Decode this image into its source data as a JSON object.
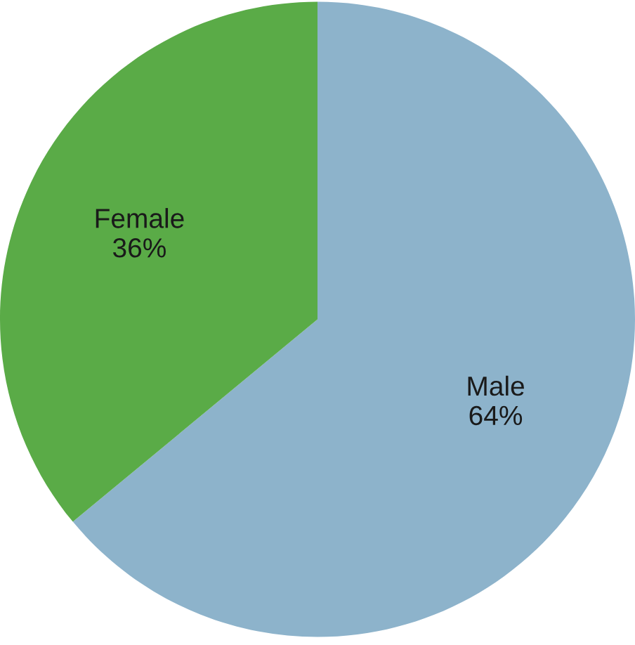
{
  "chart_data": {
    "type": "pie",
    "categories": [
      "Male",
      "Female"
    ],
    "values": [
      64,
      36
    ],
    "value_labels": [
      "64%",
      "36%"
    ],
    "colors": [
      "#8db3cb",
      "#5aab47"
    ],
    "legend": false
  }
}
